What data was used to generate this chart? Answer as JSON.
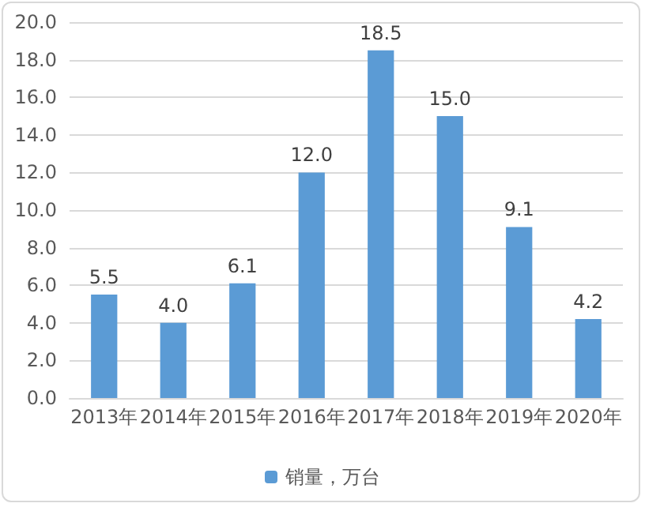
{
  "chart_data": {
    "type": "bar",
    "categories": [
      "2013年",
      "2014年",
      "2015年",
      "2016年",
      "2017年",
      "2018年",
      "2019年",
      "2020年"
    ],
    "series": [
      {
        "name": "销量，万台",
        "color": "#5b9bd5",
        "values": [
          5.5,
          4.0,
          6.1,
          12.0,
          18.5,
          15.0,
          9.1,
          4.2
        ],
        "value_labels": [
          "5.5",
          "4.0",
          "6.1",
          "12.0",
          "18.5",
          "15.0",
          "9.1",
          "4.2"
        ]
      }
    ],
    "ylim": [
      0,
      20
    ],
    "yticks": [
      {
        "value": 0,
        "label": "0.0"
      },
      {
        "value": 2,
        "label": "2.0"
      },
      {
        "value": 4,
        "label": "4.0"
      },
      {
        "value": 6,
        "label": "6.0"
      },
      {
        "value": 8,
        "label": "8.0"
      },
      {
        "value": 10,
        "label": "10.0"
      },
      {
        "value": 12,
        "label": "12.0"
      },
      {
        "value": 14,
        "label": "14.0"
      },
      {
        "value": 16,
        "label": "16.0"
      },
      {
        "value": 18,
        "label": "18.0"
      },
      {
        "value": 20,
        "label": "20.0"
      }
    ],
    "grid": "y",
    "legend": "bottom"
  }
}
